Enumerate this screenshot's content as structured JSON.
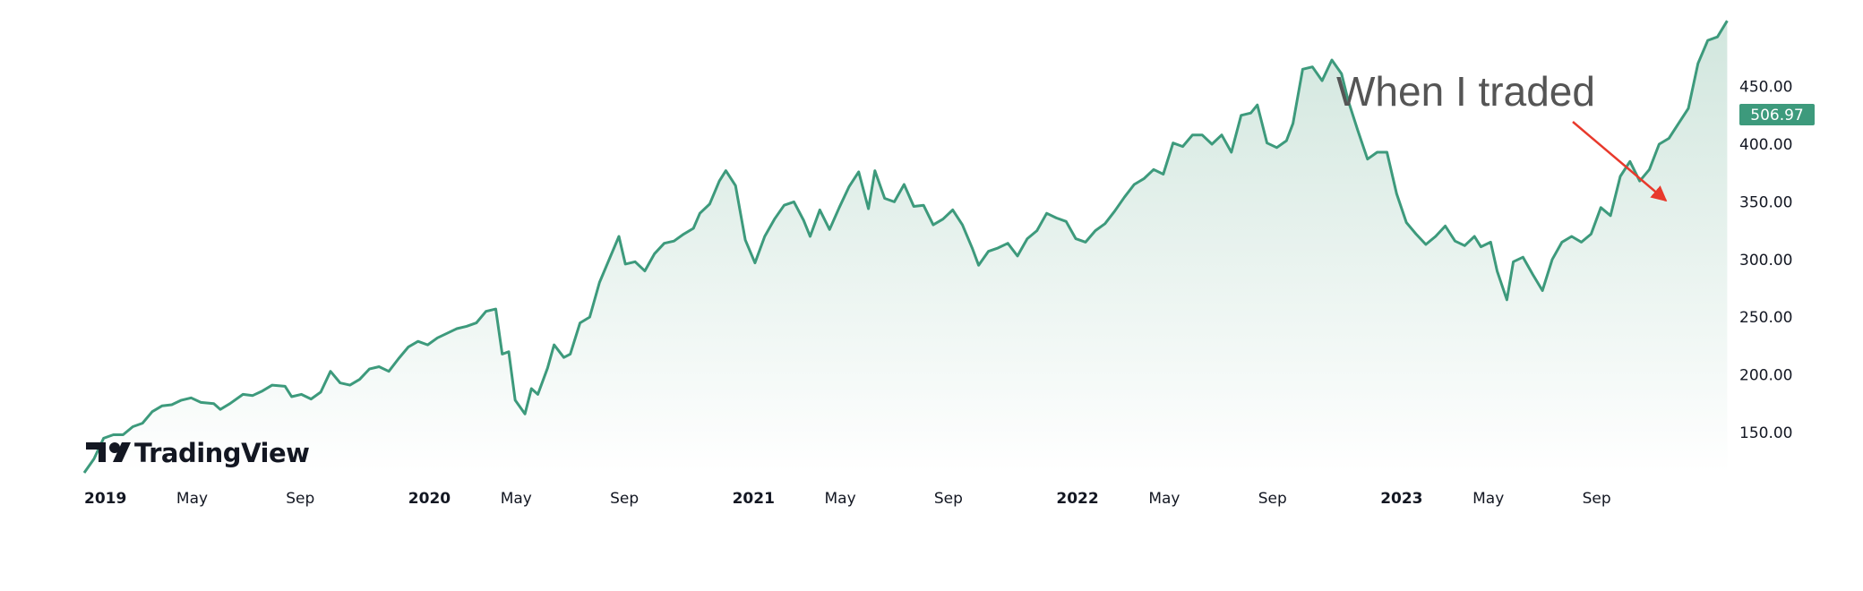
{
  "brand": {
    "name": "TradingView",
    "logo_icon": "tv-logo-icon"
  },
  "annotation": {
    "text": "When I traded",
    "arrow_color": "#e8392c"
  },
  "colors": {
    "line": "#3d9a7c",
    "fill_top": "#cfe5dc",
    "fill_bottom": "#ffffff",
    "last_badge": "#3d9a7c",
    "annotation_text": "#555555"
  },
  "chart_data": {
    "type": "area",
    "title": "",
    "xlabel": "",
    "ylabel": "",
    "x_ticks": [
      {
        "label": "2019",
        "t": 2019.0,
        "bold": true
      },
      {
        "label": "May",
        "t": 2019.333,
        "bold": false
      },
      {
        "label": "Sep",
        "t": 2019.667,
        "bold": false
      },
      {
        "label": "2020",
        "t": 2020.0,
        "bold": true
      },
      {
        "label": "May",
        "t": 2020.333,
        "bold": false
      },
      {
        "label": "Sep",
        "t": 2020.667,
        "bold": false
      },
      {
        "label": "2021",
        "t": 2021.0,
        "bold": true
      },
      {
        "label": "May",
        "t": 2021.333,
        "bold": false
      },
      {
        "label": "Sep",
        "t": 2021.667,
        "bold": false
      },
      {
        "label": "2022",
        "t": 2022.0,
        "bold": true
      },
      {
        "label": "May",
        "t": 2022.333,
        "bold": false
      },
      {
        "label": "Sep",
        "t": 2022.667,
        "bold": false
      },
      {
        "label": "2023",
        "t": 2023.0,
        "bold": true
      },
      {
        "label": "May",
        "t": 2023.333,
        "bold": false
      },
      {
        "label": "Sep",
        "t": 2023.667,
        "bold": false
      }
    ],
    "y_ticks": [
      "450.00",
      "400.00",
      "350.00",
      "300.00",
      "250.00",
      "200.00",
      "150.00"
    ],
    "y_tick_values": [
      450,
      400,
      350,
      300,
      250,
      200,
      150
    ],
    "ylim": [
      115,
      525
    ],
    "xlim": [
      2019.0,
      2024.08
    ],
    "last_value": "506.97",
    "annotation_target": {
      "t": 2023.83,
      "value": 380
    },
    "series": [
      {
        "values": [
          [
            2019.0,
            115
          ],
          [
            2019.03,
            127
          ],
          [
            2019.06,
            145
          ],
          [
            2019.09,
            148
          ],
          [
            2019.12,
            148
          ],
          [
            2019.15,
            155
          ],
          [
            2019.18,
            158
          ],
          [
            2019.21,
            168
          ],
          [
            2019.24,
            173
          ],
          [
            2019.27,
            174
          ],
          [
            2019.3,
            178
          ],
          [
            2019.33,
            180
          ],
          [
            2019.36,
            176
          ],
          [
            2019.4,
            175
          ],
          [
            2019.42,
            170
          ],
          [
            2019.45,
            175
          ],
          [
            2019.49,
            183
          ],
          [
            2019.52,
            182
          ],
          [
            2019.55,
            186
          ],
          [
            2019.58,
            191
          ],
          [
            2019.62,
            190
          ],
          [
            2019.64,
            181
          ],
          [
            2019.67,
            183
          ],
          [
            2019.7,
            179
          ],
          [
            2019.73,
            185
          ],
          [
            2019.76,
            203
          ],
          [
            2019.79,
            193
          ],
          [
            2019.82,
            191
          ],
          [
            2019.85,
            196
          ],
          [
            2019.88,
            205
          ],
          [
            2019.91,
            207
          ],
          [
            2019.94,
            203
          ],
          [
            2019.97,
            214
          ],
          [
            2020.0,
            224
          ],
          [
            2020.03,
            229
          ],
          [
            2020.06,
            226
          ],
          [
            2020.09,
            232
          ],
          [
            2020.12,
            236
          ],
          [
            2020.15,
            240
          ],
          [
            2020.18,
            242
          ],
          [
            2020.21,
            245
          ],
          [
            2020.24,
            255
          ],
          [
            2020.27,
            257
          ],
          [
            2020.29,
            218
          ],
          [
            2020.31,
            220
          ],
          [
            2020.33,
            178
          ],
          [
            2020.36,
            166
          ],
          [
            2020.38,
            188
          ],
          [
            2020.4,
            183
          ],
          [
            2020.43,
            206
          ],
          [
            2020.45,
            226
          ],
          [
            2020.48,
            215
          ],
          [
            2020.5,
            218
          ],
          [
            2020.53,
            245
          ],
          [
            2020.56,
            250
          ],
          [
            2020.59,
            280
          ],
          [
            2020.62,
            300
          ],
          [
            2020.65,
            320
          ],
          [
            2020.67,
            296
          ],
          [
            2020.7,
            298
          ],
          [
            2020.73,
            290
          ],
          [
            2020.76,
            305
          ],
          [
            2020.79,
            314
          ],
          [
            2020.82,
            316
          ],
          [
            2020.85,
            322
          ],
          [
            2020.88,
            327
          ],
          [
            2020.9,
            340
          ],
          [
            2020.93,
            348
          ],
          [
            2020.96,
            368
          ],
          [
            2020.98,
            377
          ],
          [
            2021.01,
            364
          ],
          [
            2021.04,
            317
          ],
          [
            2021.07,
            297
          ],
          [
            2021.1,
            320
          ],
          [
            2021.13,
            335
          ],
          [
            2021.16,
            347
          ],
          [
            2021.19,
            350
          ],
          [
            2021.22,
            334
          ],
          [
            2021.24,
            320
          ],
          [
            2021.27,
            343
          ],
          [
            2021.3,
            326
          ],
          [
            2021.33,
            345
          ],
          [
            2021.36,
            363
          ],
          [
            2021.39,
            376
          ],
          [
            2021.42,
            344
          ],
          [
            2021.44,
            377
          ],
          [
            2021.47,
            353
          ],
          [
            2021.5,
            350
          ],
          [
            2021.53,
            365
          ],
          [
            2021.56,
            346
          ],
          [
            2021.59,
            347
          ],
          [
            2021.62,
            330
          ],
          [
            2021.65,
            335
          ],
          [
            2021.68,
            343
          ],
          [
            2021.71,
            330
          ],
          [
            2021.74,
            310
          ],
          [
            2021.76,
            295
          ],
          [
            2021.79,
            307
          ],
          [
            2021.82,
            310
          ],
          [
            2021.85,
            314
          ],
          [
            2021.88,
            303
          ],
          [
            2021.91,
            318
          ],
          [
            2021.94,
            325
          ],
          [
            2021.97,
            340
          ],
          [
            2022.0,
            336
          ],
          [
            2022.03,
            333
          ],
          [
            2022.06,
            318
          ],
          [
            2022.09,
            315
          ],
          [
            2022.12,
            325
          ],
          [
            2022.15,
            331
          ],
          [
            2022.18,
            342
          ],
          [
            2022.21,
            354
          ],
          [
            2022.24,
            365
          ],
          [
            2022.27,
            370
          ],
          [
            2022.3,
            378
          ],
          [
            2022.33,
            374
          ],
          [
            2022.36,
            401
          ],
          [
            2022.39,
            398
          ],
          [
            2022.42,
            408
          ],
          [
            2022.45,
            408
          ],
          [
            2022.48,
            400
          ],
          [
            2022.51,
            408
          ],
          [
            2022.54,
            393
          ],
          [
            2022.57,
            425
          ],
          [
            2022.6,
            427
          ],
          [
            2022.62,
            434
          ],
          [
            2022.65,
            401
          ],
          [
            2022.68,
            397
          ],
          [
            2022.71,
            403
          ],
          [
            2022.73,
            418
          ],
          [
            2022.76,
            465
          ],
          [
            2022.79,
            467
          ],
          [
            2022.82,
            455
          ],
          [
            2022.85,
            473
          ],
          [
            2022.88,
            461
          ],
          [
            2022.9,
            438
          ],
          [
            2022.93,
            412
          ],
          [
            2022.96,
            387
          ],
          [
            2022.99,
            393
          ],
          [
            2023.02,
            393
          ]
        ]
      }
    ]
  }
}
